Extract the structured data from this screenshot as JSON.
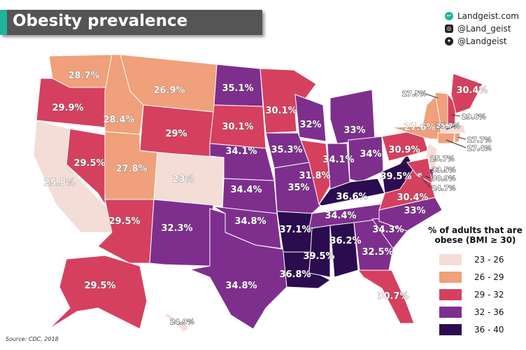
{
  "title": "Obesity prevalence",
  "brand": {
    "site": "Landgeist.com",
    "instagram": "@Land_geist",
    "twitter": "@Landgeist"
  },
  "source": "Source: CDC, 2018",
  "legend": {
    "title": "% of adults that are obese (BMI ≥ 30)",
    "bins": [
      {
        "label": "23 - 26",
        "color": "#f3ddd6"
      },
      {
        "label": "26 - 29",
        "color": "#f0a07a"
      },
      {
        "label": "29 - 32",
        "color": "#d6405f"
      },
      {
        "label": "32 - 36",
        "color": "#7e2f8e"
      },
      {
        "label": "36 - 40",
        "color": "#2b0c4f"
      }
    ]
  },
  "states": {
    "WA": "28.7%",
    "OR": "29.9%",
    "CA": "25.8%",
    "NV": "29.5%",
    "ID": "28.4%",
    "MT": "26.9%",
    "WY": "29%",
    "UT": "27.8%",
    "AZ": "29.5%",
    "CO": "23%",
    "NM": "32.3%",
    "ND": "35.1%",
    "SD": "30.1%",
    "NE": "34.1%",
    "KS": "34.4%",
    "OK": "34.8%",
    "TX": "34.8%",
    "MN": "30.1%",
    "IA": "35.3%",
    "MO": "35%",
    "AR": "37.1%",
    "LA": "36.8%",
    "WI": "32%",
    "IL": "31.8%",
    "MI": "33%",
    "IN": "34.1%",
    "OH": "34%",
    "KY": "36.6%",
    "TN": "34.4%",
    "MS": "39.5%",
    "AL": "36.2%",
    "GA": "32.5%",
    "FL": "30.7%",
    "SC": "34.3%",
    "NC": "33%",
    "VA": "30.4%",
    "WV": "39.5%",
    "PA": "30.9%",
    "NY": "27.6%",
    "VT": "27.5%",
    "NH": "29.6%",
    "ME": "30.4%",
    "MA": "25.7%",
    "RI": "27.7%",
    "CT": "27.4%",
    "NJ": "25.7%",
    "DE": "33.5%",
    "MD": "30.9%",
    "DC": "24.7%",
    "AK": "29.5%",
    "HI": "24.9%"
  }
}
